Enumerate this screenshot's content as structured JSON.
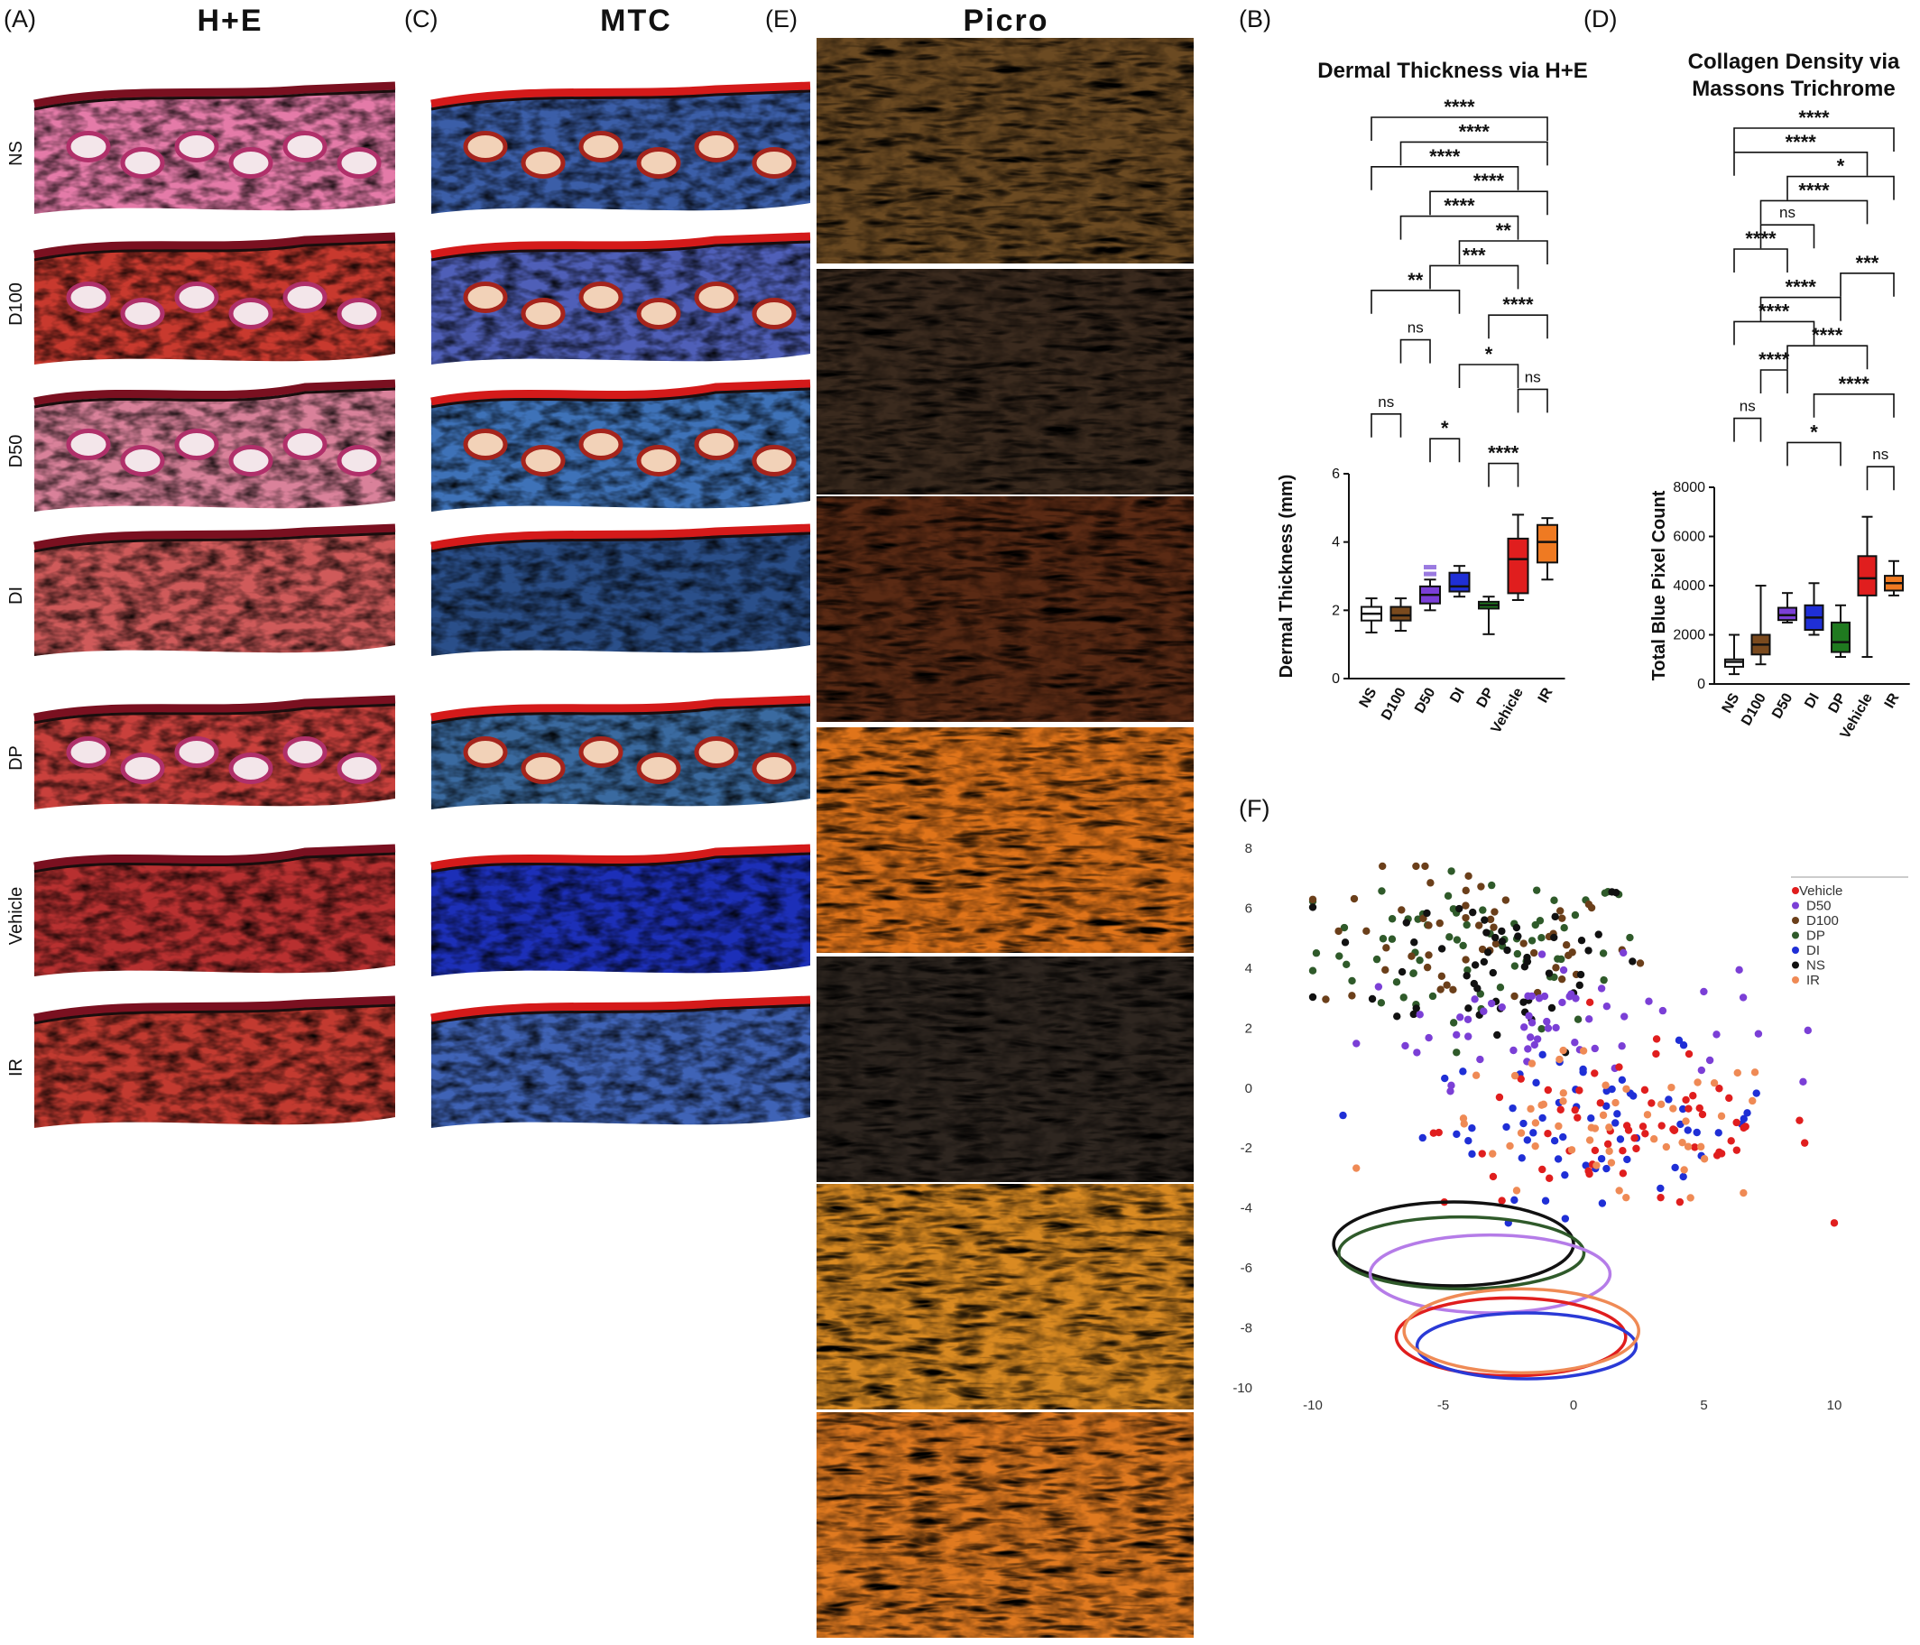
{
  "panel_labels": {
    "A": "(A)",
    "B": "(B)",
    "C": "(C)",
    "D": "(D)",
    "E": "(E)",
    "F": "(F)"
  },
  "column_titles": {
    "he": "H+E",
    "mtc": "MTC",
    "picro": "Picro"
  },
  "row_labels": [
    "NS",
    "D100",
    "D50",
    "DI",
    "DP",
    "Vehicle",
    "IR"
  ],
  "colors": {
    "NS": "#ffffff",
    "D100": "#7a4a1e",
    "D50": "#7b3fd6",
    "DI": "#1f2fd6",
    "DP": "#1f7a1f",
    "Vehicle": "#e01e1e",
    "IR": "#ef7a22"
  },
  "chart_data": [
    {
      "id": "B",
      "type": "box",
      "title": "Dermal Thickness via H+E",
      "ylabel": "Dermal Thickness (mm)",
      "ylim": [
        0,
        6
      ],
      "yticks": [
        0,
        2,
        4,
        6
      ],
      "categories": [
        "NS",
        "D100",
        "D50",
        "DI",
        "DP",
        "Vehicle",
        "IR"
      ],
      "boxes": [
        {
          "min": 1.35,
          "q1": 1.7,
          "median": 1.9,
          "q3": 2.1,
          "max": 2.35
        },
        {
          "min": 1.4,
          "q1": 1.7,
          "median": 1.85,
          "q3": 2.1,
          "max": 2.35
        },
        {
          "min": 2.0,
          "q1": 2.2,
          "median": 2.45,
          "q3": 2.7,
          "max": 2.9,
          "outliers": [
            3.05,
            3.25
          ]
        },
        {
          "min": 2.4,
          "q1": 2.55,
          "median": 2.7,
          "q3": 3.1,
          "max": 3.3
        },
        {
          "min": 1.3,
          "q1": 2.05,
          "median": 2.15,
          "q3": 2.25,
          "max": 2.4
        },
        {
          "min": 2.3,
          "q1": 2.5,
          "median": 3.5,
          "q3": 4.1,
          "max": 4.8
        },
        {
          "min": 2.9,
          "q1": 3.4,
          "median": 4.0,
          "q3": 4.5,
          "max": 4.7
        }
      ],
      "comparisons": [
        {
          "a": "NS",
          "b": "IR",
          "label": "****"
        },
        {
          "a": "D100",
          "b": "IR",
          "label": "****"
        },
        {
          "a": "NS",
          "b": "Vehicle",
          "label": "****"
        },
        {
          "a": "D50",
          "b": "IR",
          "label": "****"
        },
        {
          "a": "D100",
          "b": "Vehicle",
          "label": "****"
        },
        {
          "a": "DI",
          "b": "IR",
          "label": "**"
        },
        {
          "a": "D50",
          "b": "Vehicle",
          "label": "***"
        },
        {
          "a": "NS",
          "b": "DI",
          "label": "**"
        },
        {
          "a": "DP",
          "b": "IR",
          "label": "****"
        },
        {
          "a": "D100",
          "b": "D50",
          "label": "ns"
        },
        {
          "a": "DI",
          "b": "Vehicle",
          "label": "*"
        },
        {
          "a": "Vehicle",
          "b": "IR",
          "label": "ns"
        },
        {
          "a": "NS",
          "b": "D100",
          "label": "ns"
        },
        {
          "a": "D50",
          "b": "DI",
          "label": "*"
        },
        {
          "a": "DP",
          "b": "Vehicle",
          "label": "****"
        }
      ]
    },
    {
      "id": "D",
      "type": "box",
      "title": "Collagen Density via\nMassons Trichrome",
      "ylabel": "Total Blue Pixel Count",
      "ylim": [
        0,
        8000
      ],
      "yticks": [
        0,
        2000,
        4000,
        6000,
        8000
      ],
      "categories": [
        "NS",
        "D100",
        "D50",
        "DI",
        "DP",
        "Vehicle",
        "IR"
      ],
      "boxes": [
        {
          "min": 400,
          "q1": 700,
          "median": 900,
          "q3": 1000,
          "max": 2000
        },
        {
          "min": 800,
          "q1": 1200,
          "median": 1600,
          "q3": 2000,
          "max": 4000
        },
        {
          "min": 2500,
          "q1": 2600,
          "median": 2800,
          "q3": 3100,
          "max": 3700
        },
        {
          "min": 2000,
          "q1": 2200,
          "median": 2700,
          "q3": 3200,
          "max": 4100
        },
        {
          "min": 1100,
          "q1": 1300,
          "median": 1700,
          "q3": 2500,
          "max": 3200
        },
        {
          "min": 1100,
          "q1": 3600,
          "median": 4300,
          "q3": 5200,
          "max": 6800
        },
        {
          "min": 3600,
          "q1": 3800,
          "median": 4100,
          "q3": 4400,
          "max": 5000
        }
      ],
      "comparisons": [
        {
          "a": "NS",
          "b": "IR",
          "label": "****"
        },
        {
          "a": "NS",
          "b": "Vehicle",
          "label": "****"
        },
        {
          "a": "D50",
          "b": "IR",
          "label": "*"
        },
        {
          "a": "D100",
          "b": "Vehicle",
          "label": "****"
        },
        {
          "a": "D100",
          "b": "DI",
          "label": "ns"
        },
        {
          "a": "NS",
          "b": "D50",
          "label": "****"
        },
        {
          "a": "DP",
          "b": "IR",
          "label": "***"
        },
        {
          "a": "D100",
          "b": "DP",
          "label": "****"
        },
        {
          "a": "NS",
          "b": "DI",
          "label": "****"
        },
        {
          "a": "D50",
          "b": "Vehicle",
          "label": "****"
        },
        {
          "a": "D100",
          "b": "D50",
          "label": "****"
        },
        {
          "a": "DI",
          "b": "IR",
          "label": "****"
        },
        {
          "a": "NS",
          "b": "D100",
          "label": "ns"
        },
        {
          "a": "D50",
          "b": "DP",
          "label": "*"
        },
        {
          "a": "Vehicle",
          "b": "IR",
          "label": "ns"
        }
      ]
    },
    {
      "id": "F",
      "type": "scatter",
      "xlim": [
        -10,
        10
      ],
      "ylim": [
        -10,
        8
      ],
      "xticks": [
        -10,
        -5,
        0,
        5,
        10
      ],
      "yticks": [
        8,
        6,
        4,
        2,
        0,
        -2,
        -4,
        -6,
        -8,
        -10
      ],
      "legend_position": "top-right",
      "legend": [
        "Vehicle",
        "D50",
        "D100",
        "DP",
        "DI",
        "NS",
        "IR"
      ],
      "clusters": [
        {
          "group": "DP",
          "cx": -3.5,
          "cy": 4.6,
          "sx": 3.2,
          "sy": 1.3,
          "n": 70
        },
        {
          "group": "D100",
          "cx": -3.8,
          "cy": 4.9,
          "sx": 3.0,
          "sy": 1.3,
          "n": 55
        },
        {
          "group": "NS",
          "cx": -3.2,
          "cy": 4.3,
          "sx": 3.2,
          "sy": 1.5,
          "n": 55
        },
        {
          "group": "D50",
          "cx": -1.0,
          "cy": 2.2,
          "sx": 3.6,
          "sy": 1.0,
          "n": 60
        },
        {
          "group": "DI",
          "cx": 1.0,
          "cy": -1.2,
          "sx": 3.4,
          "sy": 1.2,
          "n": 65
        },
        {
          "group": "Vehicle",
          "cx": 2.2,
          "cy": -1.4,
          "sx": 3.6,
          "sy": 1.3,
          "n": 65
        },
        {
          "group": "IR",
          "cx": 1.2,
          "cy": -1.5,
          "sx": 3.6,
          "sy": 1.3,
          "n": 55
        }
      ]
    }
  ]
}
